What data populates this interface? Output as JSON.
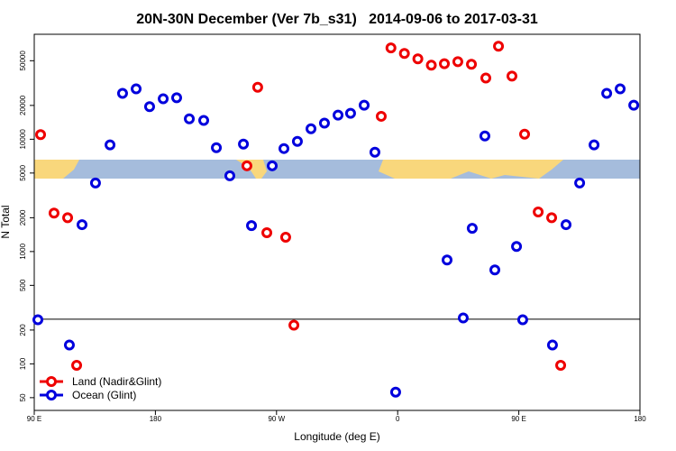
{
  "chart_data": {
    "type": "scatter",
    "title": "20N-30N December (Ver 7b_s31)   2014-09-06 to 2017-03-31",
    "xlabel": "Longitude (deg E)",
    "ylabel": "N Total",
    "xlim": [
      90,
      540
    ],
    "xticks": [
      {
        "value": 90,
        "label": "90 E"
      },
      {
        "value": 180,
        "label": "180"
      },
      {
        "value": 270,
        "label": "90 W"
      },
      {
        "value": 360,
        "label": "0"
      },
      {
        "value": 450,
        "label": "90 E"
      },
      {
        "value": 540,
        "label": "180"
      }
    ],
    "ylim": [
      38.5,
      86000
    ],
    "yscale": "log",
    "yticks": [
      50,
      100,
      200,
      500,
      1000,
      2000,
      5000,
      10000,
      20000,
      50000
    ],
    "hline": 250,
    "legend": "bottom-left",
    "series": [
      {
        "name": "Land (Nadir&Glint)",
        "color": "#ee0000",
        "x": [
          94.7,
          104.7,
          114.8,
          121.5,
          248,
          256,
          262.8,
          276.8,
          282.9,
          347.8,
          355,
          365,
          375,
          385,
          394.7,
          404.7,
          414.8,
          425.5,
          434.9,
          444.9,
          454.3,
          464.4,
          474.4,
          481.1
        ],
        "values": [
          11000,
          2200,
          2000,
          97,
          5800,
          29000,
          1470,
          1340,
          221,
          16000,
          65000,
          58000,
          52000,
          45600,
          47000,
          49000,
          46500,
          35100,
          67300,
          36500,
          11100,
          2250,
          2000,
          97
        ]
      },
      {
        "name": "Ocean (Glint)",
        "color": "#0000dd",
        "x": [
          92.7,
          116.1,
          125.5,
          135.5,
          146.3,
          155.6,
          165.7,
          175.7,
          185.8,
          195.8,
          205.2,
          215.9,
          225.3,
          235.3,
          245.4,
          251.4,
          266.8,
          275.5,
          285.5,
          295.6,
          305.6,
          315.7,
          325,
          335.1,
          343.1,
          358.5,
          396.7,
          408.7,
          415.4,
          424.8,
          432.2,
          448.3,
          452.9,
          475,
          485.1,
          495.2,
          505.9,
          515.3,
          525.3,
          535.4
        ],
        "values": [
          247,
          147,
          1735,
          4080,
          8900,
          25600,
          28100,
          19500,
          22900,
          23400,
          15200,
          14700,
          8400,
          4730,
          9060,
          1700,
          5800,
          8260,
          9570,
          12400,
          13900,
          16400,
          17000,
          20100,
          7660,
          56,
          841,
          256,
          1610,
          10700,
          686,
          1110,
          247,
          147,
          1735,
          4080,
          8900,
          25600,
          28100,
          20100
        ]
      }
    ]
  }
}
